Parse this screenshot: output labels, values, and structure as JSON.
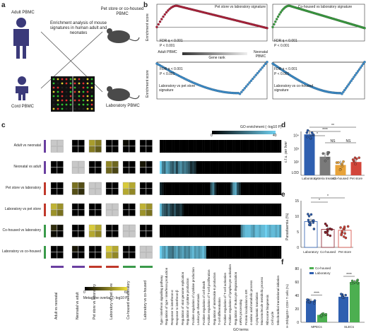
{
  "panel_a": {
    "letter": "a",
    "adult": "Adult PBMC",
    "cord": "Cord PBMC",
    "enrich": "Enrichment analysis of mouse signatures in human adult and neonates",
    "pet": "Pet store or co-housed PBMC",
    "lab": "Laboratory PBMC"
  },
  "panel_b": {
    "letter": "b",
    "es": "Enrichment score",
    "p1": {
      "title": "Pet store vs laboratory signature",
      "fdr": "FDR q < 0.001",
      "p": "P < 0.001"
    },
    "p2": {
      "title": "Co-housed vs laboratory signature",
      "fdr": "FDR q < 0.001",
      "p": "P < 0.001"
    },
    "p3": {
      "title": "Laboratory vs pet store signature",
      "fdr": "FDR q < 0.001",
      "p": "P < 0.001"
    },
    "p4": {
      "title": "Laboratory vs co-housed signature",
      "fdr": "FDR q < 0.001",
      "p": "P < 0.001"
    },
    "adult": "Adult PBMC",
    "gene_rank": "Gene rank",
    "neonatal": "Neonatal PBMC"
  },
  "panel_c": {
    "letter": "c",
    "rows": [
      "Adult vs neonatal",
      "Neonatal vs adult",
      "Pet store vs laboratory",
      "Laboratory vs pet store",
      "Co-housed vs laboratory",
      "Laboratory vs co-housed"
    ],
    "row_colors": [
      "#6a3fa0",
      "#6a3fa0",
      "#c0392b",
      "#c0392b",
      "#3a9a4a",
      "#3a9a4a"
    ],
    "go_legend": "GO enrichment (−log10 P)",
    "go_max": "40",
    "go_min": "0",
    "metagene_title": "Metagene overlap (−log10 P)",
    "metagene_min": "0",
    "metagene_max": "60",
    "go_terms_label": "GO terms",
    "go_terms": [
      "Type I interferon signalling pathway",
      "Regulation of type I interferon production",
      "Response to interferon-α",
      "Response to interferon-β",
      "Regulation of viral genome replication",
      "Regulation of cytokine production",
      "Positive regulation of cytokine production",
      "Leukocyte chemotaxis",
      "Positive regulation of cell death",
      "Positive regulation of T-cell proliferation",
      "Regulation of interleukin-6 production",
      "T-cell differentiation",
      "Positive regulation of T-cell activation",
      "Positive regulation of lymphocyte activation",
      "Regulation of leukocyte degranulation",
      "mRNA processing",
      "Protein localization to ER",
      "α-amino acid metabolic process",
      "Cytoplasmic translation",
      "Macromolecule metabolic process",
      "Ribosome biogenesis",
      "Cell cycle",
      "Mitochondrial translational initiation"
    ],
    "heat": [
      [
        0,
        0,
        0,
        0,
        0,
        0,
        0,
        0,
        0,
        0,
        0,
        0,
        0,
        0,
        0,
        0,
        0,
        0,
        0,
        0,
        0,
        0,
        0,
        0,
        0,
        0,
        0,
        0,
        0,
        0,
        0,
        0,
        0,
        0,
        0,
        0,
        0,
        0,
        0,
        0,
        0,
        0,
        0,
        0,
        0,
        0,
        0,
        0,
        0,
        0,
        0,
        0,
        0,
        0,
        0,
        0,
        0,
        0,
        0,
        0
      ],
      [
        1,
        0.6,
        0.5,
        0.8,
        0.7,
        0.5,
        0.4,
        0.6,
        0.3,
        0.6,
        0.7,
        0.5,
        0.6,
        0.5,
        0.4,
        0.2,
        0.3,
        0.2,
        0,
        0,
        0,
        0,
        0,
        0,
        0,
        0,
        0,
        0,
        0,
        0,
        0,
        0,
        0,
        0,
        0,
        0,
        0,
        0,
        0,
        0,
        0,
        0,
        0,
        0,
        0,
        0,
        0,
        0,
        0,
        0,
        0,
        0,
        0,
        0,
        0,
        0,
        0,
        0,
        0,
        0
      ],
      [
        0.2,
        0.1,
        0,
        0,
        0,
        0,
        0,
        0,
        0,
        0,
        0,
        0,
        0,
        0,
        0,
        0,
        0,
        0,
        0,
        0,
        0,
        0,
        0,
        0,
        0,
        0.4,
        0.6,
        0.2,
        0,
        0,
        0,
        0,
        0,
        0,
        0,
        0.3,
        0.7,
        0.8,
        0.4,
        0.2,
        0,
        0,
        0,
        0,
        0,
        0,
        0,
        0,
        0,
        0,
        0,
        0,
        0,
        0,
        0,
        0,
        0,
        0,
        0,
        0
      ],
      [
        0.9,
        0.5,
        0.4,
        0.3,
        0.5,
        0.3,
        0.2,
        0.4,
        0.2,
        0.2,
        0.3,
        0.1,
        0,
        0,
        0,
        0,
        0,
        0,
        0,
        0,
        0,
        0,
        0,
        0,
        0,
        0,
        0,
        0,
        0,
        0,
        0,
        0,
        0,
        0,
        0,
        0,
        0,
        0,
        0,
        0,
        0,
        0,
        0,
        0,
        0,
        0,
        0,
        0,
        0,
        0,
        0,
        0,
        0,
        0,
        0,
        0,
        0,
        0,
        0,
        0
      ],
      [
        0,
        0,
        0,
        0,
        0,
        0,
        0,
        0,
        0,
        0,
        0,
        0,
        0,
        0,
        0,
        0,
        0,
        0,
        0,
        0,
        0,
        0,
        0,
        0,
        0,
        0,
        0,
        0,
        0,
        0,
        0,
        0,
        0,
        0,
        0,
        0,
        0,
        0,
        0,
        0,
        0.6,
        0.8,
        0.9,
        0.9,
        0.9,
        0.8,
        0.7,
        0.9,
        0.9,
        0.8,
        0.9,
        0.9,
        1,
        0.9,
        0.8,
        0.9,
        0.9,
        0.8,
        0.9,
        0.7
      ],
      [
        1,
        0.8,
        0.7,
        0.9,
        0.6,
        0.6,
        0.5,
        0.7,
        0.8,
        0.6,
        0.7,
        0.8,
        0.6,
        0.7,
        0.6,
        0.8,
        0.9,
        0.7,
        0.8,
        0.7,
        0.8,
        0.9,
        0.7,
        0,
        0,
        0,
        0,
        0,
        0,
        0,
        0,
        0,
        0,
        0,
        0,
        0,
        0,
        0,
        0,
        0,
        0,
        0,
        0,
        0,
        0,
        0,
        0,
        0,
        0,
        0,
        0,
        0,
        0,
        0,
        0,
        0,
        0,
        0,
        0,
        0
      ]
    ]
  },
  "panel_d": {
    "letter": "d",
    "ylabel": "c.f.u. per liver",
    "yticks": [
      "10⁴",
      "10³",
      "10²",
      "LOD"
    ],
    "categories": [
      "Laboratory",
      "Listeria treated",
      "Co-housed",
      "Pet store"
    ],
    "sig": [
      "*",
      "****",
      "**",
      "NS",
      "NS"
    ]
  },
  "panel_e": {
    "letter": "e",
    "ylabel": "Parasitaemia (%)",
    "yticks": [
      "15",
      "10",
      "5",
      "0"
    ],
    "categories": [
      "Laboratory",
      "Co-housed",
      "Pet store"
    ],
    "sig": [
      "*",
      "*"
    ]
  },
  "panel_f": {
    "letter": "f",
    "ylabel": "H-2Kb/gp33+ CD8+ T cells (%)",
    "yticks": [
      "80",
      "60",
      "40",
      "20",
      "0"
    ],
    "legend": [
      "Co-housed",
      "Laboratory"
    ],
    "categories": [
      "MPECs",
      "SLECs"
    ],
    "sig": [
      "****",
      "****"
    ]
  },
  "chart_data": [
    {
      "type": "bar",
      "title": "",
      "ylabel": "c.f.u. per liver",
      "categories": [
        "Laboratory",
        "Listeria treated",
        "Co-housed",
        "Pet store"
      ],
      "values": [
        12000,
        250,
        60,
        100
      ],
      "colors": [
        "#2e5fb0",
        "#7a7a7a",
        "#e8a33a",
        "#d2453a"
      ],
      "yscale": "log"
    },
    {
      "type": "bar",
      "title": "",
      "ylabel": "Parasitaemia (%)",
      "categories": [
        "Laboratory",
        "Co-housed",
        "Pet store"
      ],
      "values": [
        8.3,
        5.8,
        5.5
      ],
      "colors": [
        "#2e5fb0",
        "#8a1f2a",
        "#d2453a"
      ],
      "ylim": [
        0,
        15
      ]
    },
    {
      "type": "bar",
      "title": "",
      "ylabel": "H-2Kb/gp33+ CD8+ T cells (%)",
      "categories": [
        "MPECs",
        "SLECs"
      ],
      "series": [
        {
          "name": "Laboratory",
          "values": [
            32,
            38
          ]
        },
        {
          "name": "Co-housed",
          "values": [
            11,
            60
          ]
        }
      ],
      "colors": [
        "#2e5fb0",
        "#4caf50"
      ],
      "ylim": [
        0,
        80
      ]
    }
  ]
}
